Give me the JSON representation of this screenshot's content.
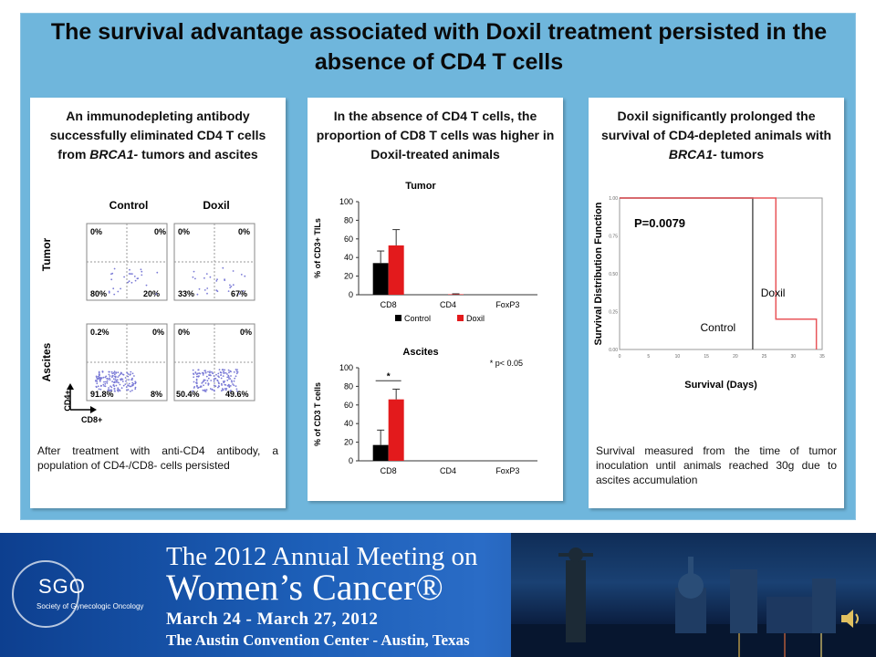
{
  "slide_title": "The survival advantage associated with Doxil treatment persisted in the absence of CD4 T cells",
  "left_card": {
    "heading_before": "An immunodepleting antibody successfully eliminated CD4 T cells from ",
    "heading_italic": "BRCA1-",
    "heading_after": " tumors and ascites",
    "col_control": "Control",
    "col_doxil": "Doxil",
    "row_tumor": "Tumor",
    "row_ascites": "Ascites",
    "axis_cd4": "CD4+",
    "axis_cd8": "CD8+",
    "tumor_control": {
      "tl": "0%",
      "tr": "0%",
      "bl": "80%",
      "br": "20%"
    },
    "tumor_doxil": {
      "tl": "0%",
      "tr": "0%",
      "bl": "33%",
      "br": "67%"
    },
    "ascites_control": {
      "tl": "0.2%",
      "tr": "0%",
      "bl": "91.8%",
      "br": "8%"
    },
    "ascites_doxil": {
      "tl": "0%",
      "tr": "0%",
      "bl": "50.4%",
      "br": "49.6%"
    },
    "footer": "After treatment with anti-CD4 antibody, a population of CD4-/CD8- cells persisted"
  },
  "middle_card": {
    "heading": "In the absence of CD4 T cells, the proportion of CD8 T cells was higher in Doxil-treated animals"
  },
  "right_card": {
    "heading_before": "Doxil significantly prolonged the survival of CD4-depleted animals with ",
    "heading_italic": "BRCA1-",
    "heading_after": " tumors",
    "footer": "Survival measured from the time of tumor inoculation until animals reached 30g due to ascites accumulation"
  },
  "chart_data": [
    {
      "type": "bar",
      "title": "Tumor",
      "ylabel": "% of CD3+ TILs",
      "xlabel": "",
      "categories": [
        "CD8",
        "CD4",
        "FoxP3"
      ],
      "ylim": [
        0,
        100
      ],
      "yticks": [
        "0",
        "20",
        "40",
        "60",
        "80",
        "100"
      ],
      "series": [
        {
          "name": "Control",
          "color": "#000000",
          "values": [
            34,
            0,
            0
          ],
          "errors": [
            13,
            0,
            0
          ]
        },
        {
          "name": "Doxil",
          "color": "#e31a1c",
          "values": [
            53,
            0.5,
            0
          ],
          "errors": [
            17,
            0.5,
            0
          ]
        }
      ],
      "legend": "bottom"
    },
    {
      "type": "bar",
      "title": "Ascites",
      "ylabel": "% of CD3 T cells",
      "xlabel": "",
      "categories": [
        "CD8",
        "CD4",
        "FoxP3"
      ],
      "ylim": [
        0,
        100
      ],
      "yticks": [
        "0",
        "20",
        "40",
        "60",
        "80",
        "100"
      ],
      "series": [
        {
          "name": "Control",
          "color": "#000000",
          "values": [
            17,
            0,
            0
          ],
          "errors": [
            16,
            0,
            0
          ]
        },
        {
          "name": "Doxil",
          "color": "#e31a1c",
          "values": [
            66,
            0,
            0
          ],
          "errors": [
            11,
            0,
            0
          ]
        }
      ],
      "annotation": "* p< 0.05",
      "significance": "*"
    },
    {
      "type": "line",
      "title": "",
      "ylabel": "Survival Distribution Function",
      "xlabel": "Survival (Days)",
      "xlim": [
        0,
        35
      ],
      "ylim": [
        0,
        1
      ],
      "xticks": [
        "0",
        "5",
        "10",
        "15",
        "20",
        "25",
        "30",
        "35"
      ],
      "yticks": [
        "0.00",
        "0.25",
        "0.50",
        "0.75",
        "1.00"
      ],
      "series": [
        {
          "name": "Control",
          "color": "#555555",
          "x": [
            0,
            23,
            23
          ],
          "y": [
            1,
            1,
            0
          ]
        },
        {
          "name": "Doxil",
          "color": "#e8565a",
          "x": [
            0,
            27,
            27,
            34,
            34
          ],
          "y": [
            1,
            1,
            0.2,
            0.2,
            0
          ]
        }
      ],
      "annotation": "P=0.0079"
    }
  ],
  "banner": {
    "line1": "The 2012 Annual Meeting on",
    "line2": "Women’s Cancer®",
    "dates": "March 24 - March 27, 2012",
    "venue": "The Austin Convention Center - Austin, Texas",
    "logo_text": "SGO",
    "logo_sub": "Society of Gynecologic Oncology"
  }
}
